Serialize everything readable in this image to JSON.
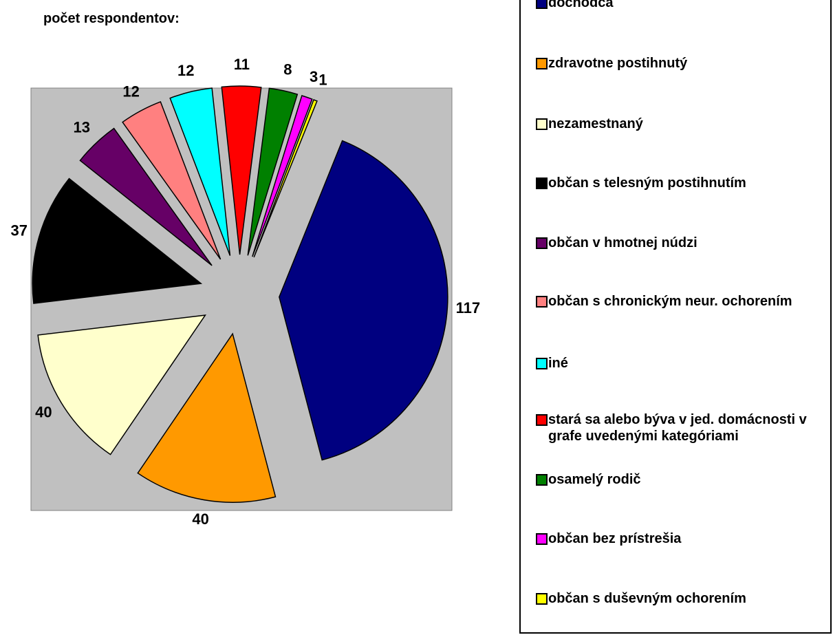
{
  "chart_data": {
    "type": "pie",
    "title": "počet respondentov:",
    "categories": [
      "dochodca",
      "zdravotne postihnutý",
      "nezamestnaný",
      "občan s telesným postihnutím",
      "občan v hmotnej núdzi",
      "občan s chronickým neur. ochorením",
      "iné",
      "stará sa alebo býva v jed. domácnosti v grafe uvedenými kategóriami",
      "osamelý rodič",
      "občan bez prístrešia",
      "občan s duševným ochorením"
    ],
    "values": [
      117,
      40,
      40,
      37,
      13,
      12,
      12,
      11,
      8,
      3,
      1
    ],
    "colors": [
      "#000080",
      "#ff9900",
      "#ffffcc",
      "#000000",
      "#660066",
      "#ff8080",
      "#00ffff",
      "#ff0000",
      "#008000",
      "#ff00ff",
      "#ffff00"
    ],
    "legend": "right"
  }
}
